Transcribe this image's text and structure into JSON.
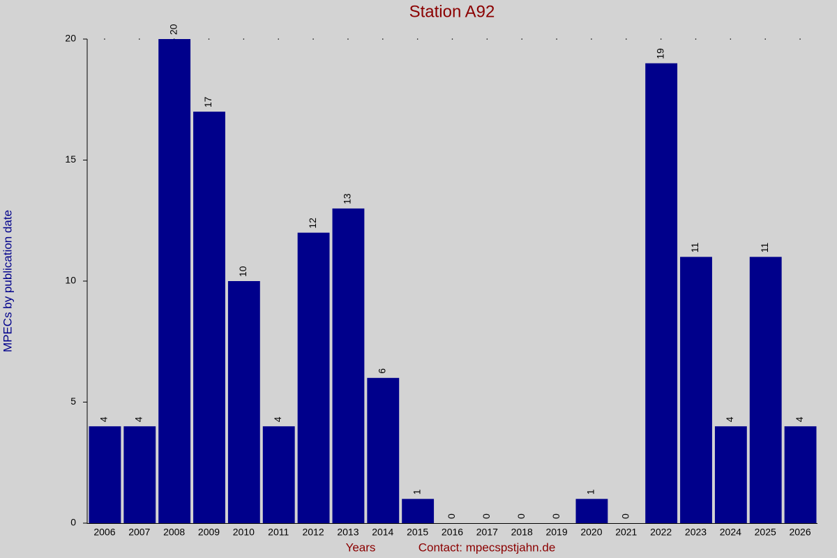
{
  "chart_data": {
    "type": "bar",
    "title": "Station A92",
    "x_label": "Years",
    "contact": "Contact: mpecspstjahn.de",
    "y_label": "MPECs by publication date",
    "categories": [
      "2006",
      "2007",
      "2008",
      "2009",
      "2010",
      "2011",
      "2012",
      "2013",
      "2014",
      "2015",
      "2016",
      "2017",
      "2018",
      "2019",
      "2020",
      "2021",
      "2022",
      "2023",
      "2024",
      "2025",
      "2026"
    ],
    "values": [
      4,
      4,
      20,
      17,
      10,
      4,
      12,
      13,
      6,
      1,
      0,
      0,
      0,
      0,
      1,
      0,
      19,
      11,
      4,
      11,
      4
    ],
    "color": "#00008b",
    "ylim": [
      0,
      20
    ],
    "yticks": [
      0,
      5,
      10,
      15,
      20
    ]
  }
}
